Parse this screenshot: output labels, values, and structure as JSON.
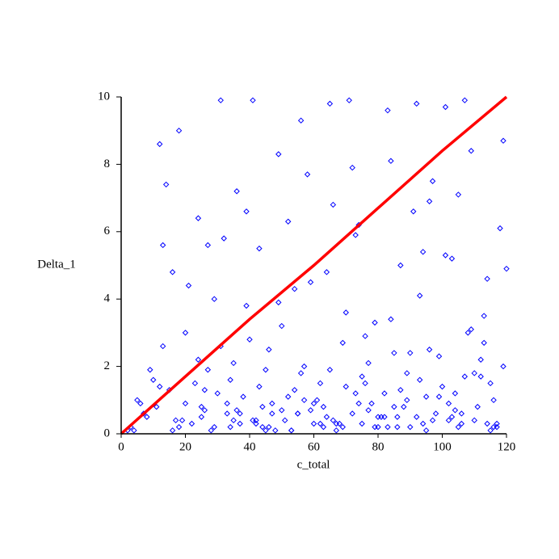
{
  "chart_data": {
    "type": "scatter",
    "xlabel": "c_total",
    "ylabel": "Delta_1",
    "xlim": [
      0,
      120
    ],
    "ylim": [
      0,
      10
    ],
    "xticks": [
      0,
      20,
      40,
      60,
      80,
      100,
      120
    ],
    "yticks": [
      0,
      2,
      4,
      6,
      8,
      10
    ],
    "series": [
      {
        "type": "scatter",
        "color": "#0000ff",
        "x": [
          3,
          8,
          12,
          15,
          18,
          22,
          25,
          28,
          31,
          35,
          38,
          41,
          44,
          47,
          50,
          53,
          56,
          59,
          62,
          65,
          68,
          71,
          74,
          77,
          80,
          83,
          86,
          89,
          92,
          95,
          98,
          101,
          104,
          107,
          110,
          113,
          116,
          119,
          6,
          10,
          14,
          19,
          24,
          27,
          33,
          36,
          42,
          46,
          49,
          55,
          58,
          61,
          66,
          69,
          73,
          76,
          81,
          84,
          88,
          91,
          94,
          97,
          100,
          103,
          106,
          109,
          112,
          115,
          118,
          2,
          5,
          9,
          13,
          17,
          21,
          26,
          30,
          34,
          39,
          43,
          48,
          52,
          57,
          60,
          64,
          67,
          72,
          75,
          79,
          82,
          87,
          90,
          93,
          96,
          99,
          102,
          105,
          108,
          111,
          114,
          117,
          4,
          11,
          16,
          20,
          23,
          29,
          32,
          37,
          40,
          45,
          51,
          54,
          63,
          70,
          78,
          85,
          101,
          110,
          120,
          7,
          13,
          18,
          24,
          29,
          34,
          39,
          44,
          49,
          54,
          59,
          64,
          69,
          74,
          79,
          84,
          89,
          94,
          99,
          104,
          109,
          114,
          119,
          12,
          20,
          31,
          41,
          52,
          62,
          72,
          82,
          92,
          102,
          112,
          16,
          26,
          36,
          46,
          56,
          66,
          76,
          86,
          96,
          106,
          116,
          33,
          43,
          53,
          63,
          73,
          83,
          93,
          103,
          113,
          27,
          37,
          47,
          57,
          67,
          77,
          87,
          97,
          107,
          117,
          25,
          35,
          45,
          55,
          65,
          75,
          85,
          95,
          105,
          115,
          42,
          50,
          60,
          70,
          80,
          90
        ],
        "values": [
          0.2,
          0.5,
          8.6,
          1.3,
          9.0,
          0.3,
          0.8,
          0.1,
          9.9,
          0.4,
          1.1,
          9.9,
          0.2,
          0.6,
          3.2,
          0.1,
          9.3,
          0.7,
          1.5,
          9.8,
          0.3,
          9.9,
          0.9,
          2.1,
          0.2,
          9.6,
          0.5,
          1.8,
          9.8,
          0.1,
          0.6,
          9.7,
          1.2,
          9.9,
          0.4,
          3.5,
          0.2,
          8.7,
          0.9,
          1.6,
          7.4,
          0.4,
          6.4,
          5.6,
          0.9,
          7.2,
          0.3,
          2.5,
          8.3,
          0.6,
          7.7,
          1.0,
          6.8,
          0.2,
          5.9,
          2.9,
          0.5,
          8.1,
          0.8,
          6.6,
          0.3,
          7.5,
          1.4,
          5.2,
          0.6,
          8.4,
          2.2,
          0.1,
          6.1,
          0.1,
          1.0,
          1.9,
          2.6,
          0.4,
          4.4,
          0.7,
          1.2,
          0.2,
          3.8,
          5.5,
          0.1,
          6.3,
          2.0,
          0.9,
          4.8,
          0.3,
          7.9,
          1.7,
          3.3,
          0.5,
          5.0,
          0.2,
          4.1,
          6.9,
          1.1,
          0.4,
          7.1,
          3.0,
          0.8,
          4.6,
          0.3,
          0.1,
          0.8,
          4.8,
          3.0,
          1.5,
          0.2,
          5.8,
          0.6,
          2.8,
          1.9,
          0.4,
          4.3,
          0.2,
          3.6,
          0.9,
          2.4,
          5.3,
          1.8,
          4.9,
          0.6,
          5.6,
          0.2,
          2.2,
          4.0,
          1.6,
          6.6,
          0.8,
          3.9,
          1.3,
          4.5,
          0.5,
          2.7,
          6.2,
          0.2,
          3.4,
          1.0,
          5.4,
          2.3,
          0.7,
          3.1,
          0.3,
          2.0,
          1.4,
          0.9,
          2.6,
          0.4,
          1.1,
          0.3,
          0.6,
          1.2,
          0.5,
          0.9,
          1.7,
          0.1,
          1.3,
          0.7,
          0.2,
          1.8,
          0.4,
          1.5,
          0.2,
          2.5,
          0.3,
          1.0,
          0.6,
          1.4,
          0.1,
          0.8,
          1.2,
          0.2,
          1.6,
          0.5,
          2.7,
          1.9,
          0.3,
          0.9,
          1.0,
          0.1,
          0.7,
          1.3,
          0.4,
          1.7,
          0.2,
          0.5,
          2.1,
          0.1,
          0.6,
          1.9,
          0.3,
          0.8,
          1.1,
          0.2,
          1.5,
          0.4,
          0.7,
          0.3,
          1.4,
          0.5,
          2.4
        ]
      },
      {
        "type": "line",
        "color": "#ff0000",
        "x": [
          0,
          20,
          40,
          60,
          80,
          100,
          120
        ],
        "values": [
          0,
          1.7,
          3.4,
          5.0,
          6.7,
          8.4,
          10
        ]
      }
    ]
  }
}
